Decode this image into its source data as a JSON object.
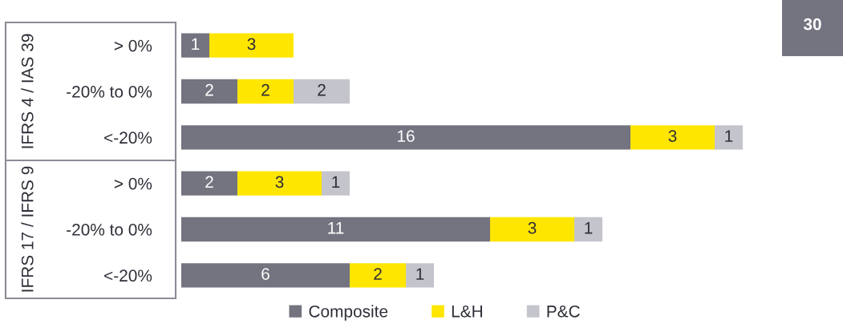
{
  "chart_data": {
    "type": "bar",
    "orientation": "horizontal",
    "stacked": true,
    "data_labels": true,
    "legend": "bottom",
    "tick_labels": "y",
    "grid": false,
    "categories": [
      "> 0%",
      "-20% to 0%",
      "<-20%",
      "> 0%",
      "-20% to 0%",
      "<-20%"
    ],
    "series": [
      {
        "name": "Composite",
        "color": "#747480",
        "values": [
          1,
          2,
          16,
          2,
          11,
          6
        ]
      },
      {
        "name": "L&H",
        "color": "#ffe600",
        "values": [
          3,
          2,
          3,
          3,
          3,
          2
        ]
      },
      {
        "name": "P&C",
        "color": "#c4c4cd",
        "values": [
          null,
          2,
          1,
          1,
          1,
          1
        ]
      }
    ],
    "annotations": [
      "IFRS 4 / IAS 39",
      "IFRS 17 / IFRS 9",
      "30"
    ]
  }
}
